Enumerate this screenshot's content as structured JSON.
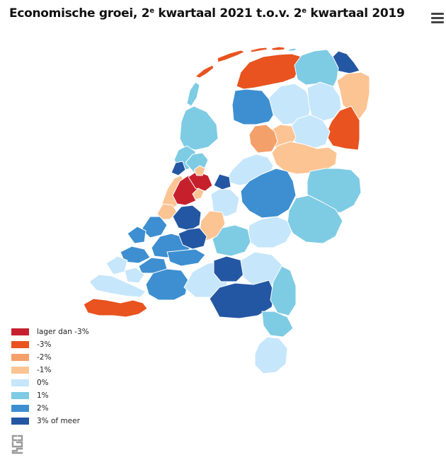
{
  "title": {
    "part1": "Economische groei, 2",
    "sup1": "e",
    "part2": " kwartaal 2021 t.o.v. 2",
    "sup2": "e",
    "part3": " kwartaal 2019"
  },
  "menu_icon": "hamburger-menu-icon",
  "colors": {
    "lager_dan_min3": "#c7202d",
    "min3": "#e8531f",
    "min2": "#f4a06a",
    "min1": "#fcc493",
    "zero": "#c6e6fb",
    "plus1": "#7ecbe4",
    "plus2": "#3d8fd1",
    "plus3": "#2457a3"
  },
  "legend": [
    {
      "label": "lager dan -3%",
      "color": "#c7202d"
    },
    {
      "label": "-3%",
      "color": "#e8531f"
    },
    {
      "label": "-2%",
      "color": "#f4a06a"
    },
    {
      "label": "-1%",
      "color": "#fcc493"
    },
    {
      "label": "0%",
      "color": "#c6e6fb"
    },
    {
      "label": "1%",
      "color": "#7ecbe4"
    },
    {
      "label": "2%",
      "color": "#3d8fd1"
    },
    {
      "label": "3% of meer",
      "color": "#2457a3"
    }
  ],
  "logo": "cbs-logo"
}
